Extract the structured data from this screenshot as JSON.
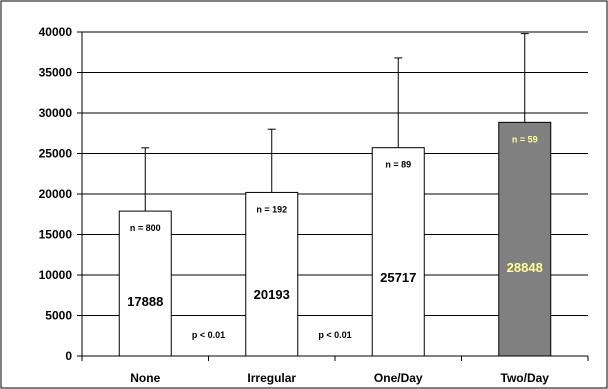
{
  "chart_data": {
    "type": "bar",
    "categories": [
      "None",
      "Irregular",
      "One/Day",
      "Two/Day"
    ],
    "values": [
      17888,
      20193,
      25717,
      28848
    ],
    "error_upper": [
      25700,
      28000,
      36800,
      39800
    ],
    "sample_sizes": [
      "n = 800",
      "n = 192",
      "n = 89",
      "n = 59"
    ],
    "value_labels": [
      "17888",
      "20193",
      "25717",
      "28848"
    ],
    "p_values": [
      "p < 0.01",
      "p < 0.01"
    ],
    "yticks": [
      "0",
      "5000",
      "10000",
      "15000",
      "20000",
      "25000",
      "30000",
      "35000",
      "40000"
    ],
    "ylim": [
      0,
      40000
    ],
    "grid": true,
    "bar_colors": [
      "#ffffff",
      "#ffffff",
      "#ffffff",
      "#808080"
    ],
    "value_label_colors": [
      "#000000",
      "#000000",
      "#000000",
      "#ffff99"
    ],
    "n_label_colors": [
      "#000000",
      "#000000",
      "#000000",
      "#ffff99"
    ]
  }
}
